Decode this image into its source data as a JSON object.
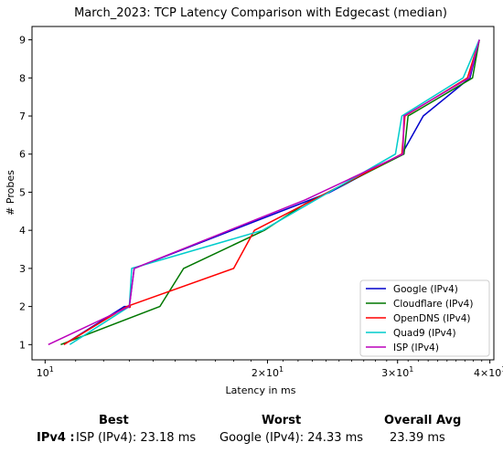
{
  "chart_data": {
    "type": "line",
    "title": "March_2023: TCP Latency Comparison with Edgecast (median)",
    "xlabel": "Latency in ms",
    "ylabel": "# Probes",
    "xscale": "log",
    "xlim": [
      9.6,
      40.5
    ],
    "ylim": [
      0.6,
      9.35
    ],
    "xticks": [
      {
        "value": 10,
        "base": "10",
        "exp": "1"
      },
      {
        "value": 20,
        "base": "2×10",
        "exp": "1"
      },
      {
        "value": 30,
        "base": "3×10",
        "exp": "1"
      },
      {
        "value": 40,
        "base": "4×10",
        "exp": "1"
      }
    ],
    "yticks": [
      1,
      2,
      3,
      4,
      5,
      6,
      7,
      8,
      9
    ],
    "grid": false,
    "legend": "bottom-right",
    "series": [
      {
        "name": "Google (IPv4)",
        "color": "#0000cc",
        "x": [
          10.6,
          12.8,
          13.0,
          13.2,
          24.3,
          30.4,
          32.5,
          37.6,
          38.7
        ],
        "y": [
          1,
          2,
          2,
          3,
          5,
          6,
          7,
          8,
          9
        ]
      },
      {
        "name": "Cloudflare (IPv4)",
        "color": "#007700",
        "x": [
          10.5,
          14.3,
          15.4,
          19.8,
          22.5,
          30.6,
          31.0,
          37.9,
          38.7
        ],
        "y": [
          1,
          2,
          3,
          4,
          4.7,
          6,
          7,
          8,
          9
        ]
      },
      {
        "name": "OpenDNS (IPv4)",
        "color": "#ff0000",
        "x": [
          10.6,
          12.9,
          18.0,
          19.2,
          30.4,
          30.7,
          37.3,
          38.7
        ],
        "y": [
          1,
          2,
          3,
          4,
          6,
          7,
          8,
          9
        ],
        "markers": [
          [
            13.0,
            2
          ]
        ]
      },
      {
        "name": "Quad9 (IPv4)",
        "color": "#00cccc",
        "x": [
          10.8,
          13.0,
          13.1,
          19.7,
          29.8,
          30.4,
          36.8,
          38.7
        ],
        "y": [
          1,
          2,
          3,
          4,
          6,
          7,
          8,
          9
        ]
      },
      {
        "name": "ISP (IPv4)",
        "color": "#bb00bb",
        "x": [
          10.1,
          13.0,
          13.2,
          22.5,
          30.5,
          30.6,
          37.5,
          38.7
        ],
        "y": [
          1,
          2,
          3,
          4.8,
          6,
          7,
          8,
          9
        ]
      }
    ]
  },
  "summary": {
    "headers": {
      "best": "Best",
      "worst": "Worst",
      "avg": "Overall Avg"
    },
    "row_label": "IPv4 :",
    "best": "ISP (IPv4): 23.18 ms",
    "worst": "Google (IPv4): 24.33 ms",
    "avg": "23.39 ms"
  }
}
